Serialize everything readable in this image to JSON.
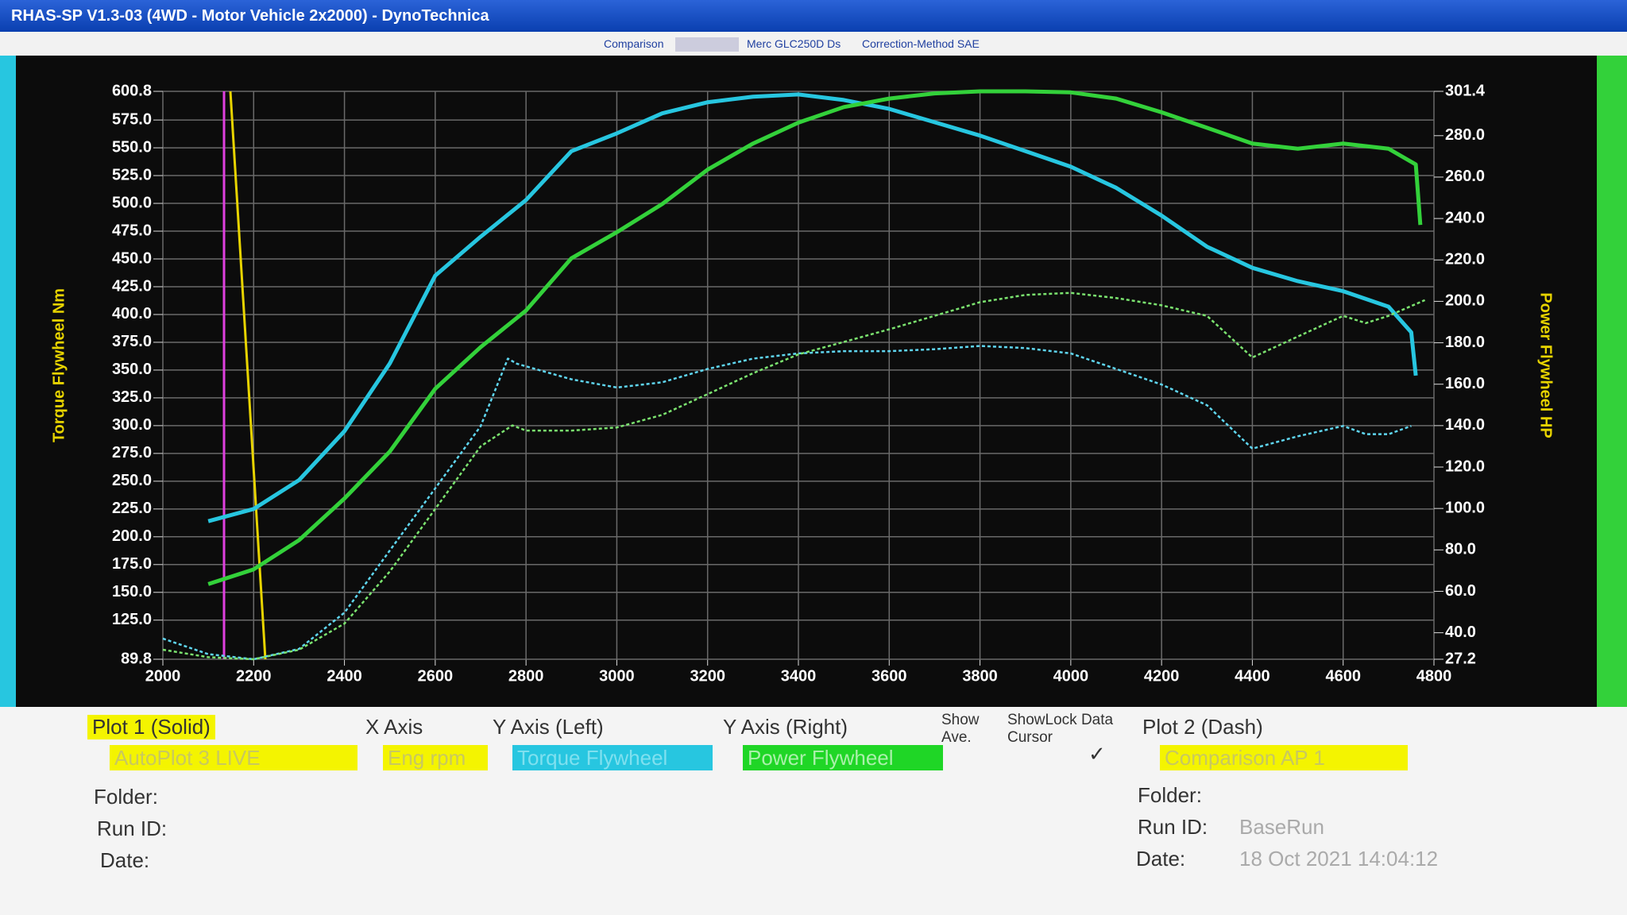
{
  "window": {
    "title": "RHAS-SP V1.3-03  (4WD - Motor Vehicle 2x2000) - DynoTechnica"
  },
  "header": {
    "comparison": "Comparison",
    "vehicle": "Merc GLC250D Ds",
    "correction": "Correction-Method  SAE"
  },
  "chart_data": {
    "type": "line",
    "ylabel": "Torque Flywheel Nm",
    "y2label": "Power Flywheel HP",
    "xlim": [
      2000,
      4800
    ],
    "xticks": [
      2000,
      2200,
      2400,
      2600,
      2800,
      3000,
      3200,
      3400,
      3600,
      3800,
      4000,
      4200,
      4400,
      4600,
      4800
    ],
    "ylim": [
      89.8,
      600.8
    ],
    "yticks": [
      600.8,
      {
        "value": 575,
        "label": "575.0"
      },
      {
        "value": 550,
        "label": "550.0"
      },
      {
        "value": 525,
        "label": "525.0"
      },
      {
        "value": 500,
        "label": "500.0"
      },
      {
        "value": 475,
        "label": "475.0"
      },
      {
        "value": 450,
        "label": "450.0"
      },
      {
        "value": 425,
        "label": "425.0"
      },
      {
        "value": 400,
        "label": "400.0"
      },
      {
        "value": 375,
        "label": "375.0"
      },
      {
        "value": 350,
        "label": "350.0"
      },
      {
        "value": 325,
        "label": "325.0"
      },
      {
        "value": 300,
        "label": "300.0"
      },
      {
        "value": 275,
        "label": "275.0"
      },
      {
        "value": 250,
        "label": "250.0"
      },
      {
        "value": 225,
        "label": "225.0"
      },
      {
        "value": 200,
        "label": "200.0"
      },
      {
        "value": 175,
        "label": "175.0"
      },
      {
        "value": 150,
        "label": "150.0"
      },
      {
        "value": 125,
        "label": "125.0"
      },
      89.8
    ],
    "y2lim": [
      27.2,
      301.4
    ],
    "y2ticks": [
      301.4,
      {
        "value": 280,
        "label": "280.0"
      },
      {
        "value": 260,
        "label": "260.0"
      },
      {
        "value": 240,
        "label": "240.0"
      },
      {
        "value": 220,
        "label": "220.0"
      },
      {
        "value": 200,
        "label": "200.0"
      },
      {
        "value": 180,
        "label": "180.0"
      },
      {
        "value": 160,
        "label": "160.0"
      },
      {
        "value": 140,
        "label": "140.0"
      },
      {
        "value": 120,
        "label": "120.0"
      },
      {
        "value": 100,
        "label": "100.0"
      },
      {
        "value": 80,
        "label": "80.0"
      },
      {
        "value": 60,
        "label": "60.0"
      },
      {
        "value": 40,
        "label": "40.0"
      },
      27.2
    ],
    "grid": true,
    "series": [
      {
        "color": "#27c6e0",
        "line_style": "solid",
        "axis": "y",
        "x": [
          2100,
          2200,
          2300,
          2400,
          2500,
          2600,
          2700,
          2800,
          2900,
          3000,
          3100,
          3200,
          3300,
          3400,
          3500,
          3600,
          3700,
          3800,
          3900,
          4000,
          4100,
          4200,
          4300,
          4400,
          4500,
          4600,
          4700,
          4750,
          4760
        ],
        "values": [
          214,
          225,
          251,
          295,
          356,
          435,
          470,
          503,
          547,
          563,
          581,
          591,
          596,
          598,
          593,
          585,
          573,
          561,
          547,
          533,
          514,
          489,
          461,
          442,
          430,
          421,
          407,
          384,
          345
        ]
      },
      {
        "color": "#33d13a",
        "line_style": "solid",
        "axis": "y2",
        "x": [
          2100,
          2200,
          2300,
          2400,
          2500,
          2600,
          2700,
          2800,
          2900,
          3000,
          3100,
          3200,
          3300,
          3400,
          3500,
          3600,
          3700,
          3800,
          3900,
          4000,
          4100,
          4200,
          4300,
          4400,
          4500,
          4600,
          4700,
          4760,
          4770
        ],
        "values": [
          63.5,
          70.6,
          84.7,
          104.8,
          127.5,
          157.8,
          177.9,
          195.6,
          220.8,
          233.4,
          247,
          263.6,
          276.2,
          286.3,
          293.8,
          297.9,
          300.4,
          301.4,
          301.4,
          300.9,
          297.9,
          291.3,
          283.8,
          276.2,
          273.7,
          276.2,
          273.7,
          266.1,
          236.9
        ]
      },
      {
        "color": "#5fd6f0",
        "line_style": "dashed",
        "axis": "y",
        "x": [
          2000,
          2100,
          2200,
          2300,
          2400,
          2500,
          2600,
          2700,
          2760,
          2780,
          2900,
          3000,
          3100,
          3200,
          3300,
          3400,
          3500,
          3600,
          3700,
          3800,
          3900,
          4000,
          4100,
          4200,
          4300,
          4400,
          4500,
          4600,
          4650,
          4700,
          4750
        ],
        "values": [
          108.4,
          94.4,
          89.8,
          99.1,
          131.7,
          187.7,
          243.6,
          299.5,
          360.3,
          355.7,
          341.7,
          334.3,
          339,
          351,
          360.3,
          365,
          367,
          367,
          368.8,
          371.7,
          369.8,
          365,
          351,
          337,
          318.4,
          279.3,
          290.4,
          299.7,
          292.3,
          292.3,
          299.7
        ]
      },
      {
        "color": "#7be36f",
        "line_style": "dashed",
        "axis": "y2",
        "x": [
          2000,
          2100,
          2200,
          2300,
          2400,
          2500,
          2600,
          2700,
          2770,
          2800,
          2900,
          3000,
          3100,
          3200,
          3300,
          3400,
          3500,
          3600,
          3700,
          3800,
          3900,
          4000,
          4100,
          4200,
          4300,
          4400,
          4500,
          4600,
          4650,
          4700,
          4780
        ],
        "values": [
          31.8,
          28.2,
          27.2,
          31.8,
          44.4,
          69.6,
          99.8,
          130,
          140.1,
          137.6,
          137.6,
          139.1,
          145.2,
          155.2,
          165.3,
          174.4,
          180.4,
          186.5,
          193,
          199.6,
          203.1,
          204.1,
          201.6,
          198.1,
          193,
          172.9,
          183,
          193,
          189.5,
          193,
          200.6
        ]
      }
    ]
  },
  "panel": {
    "plot1": "Plot 1 (Solid)",
    "x_axis": "X Axis",
    "y_left": "Y Axis (Left)",
    "y_right": "Y Axis (Right)",
    "show_ave": "Show Ave.",
    "showlock": "ShowLock Data Cursor",
    "plot2": "Plot 2 (Dash)",
    "plot1_select": "AutoPlot 3 LIVE",
    "x_select": "Eng rpm",
    "y_left_select": "Torque Flywheel",
    "y_right_select": "Power Flywheel",
    "plot2_select": "Comparison AP 1",
    "folder1": "Folder:",
    "runid1": "Run ID:",
    "date1": "Date:",
    "folder2": "Folder:",
    "runid2": "Run ID:",
    "date2": "Date:",
    "runid2_value": "BaseRun",
    "date2_value": "18 Oct 2021  14:04:12"
  }
}
